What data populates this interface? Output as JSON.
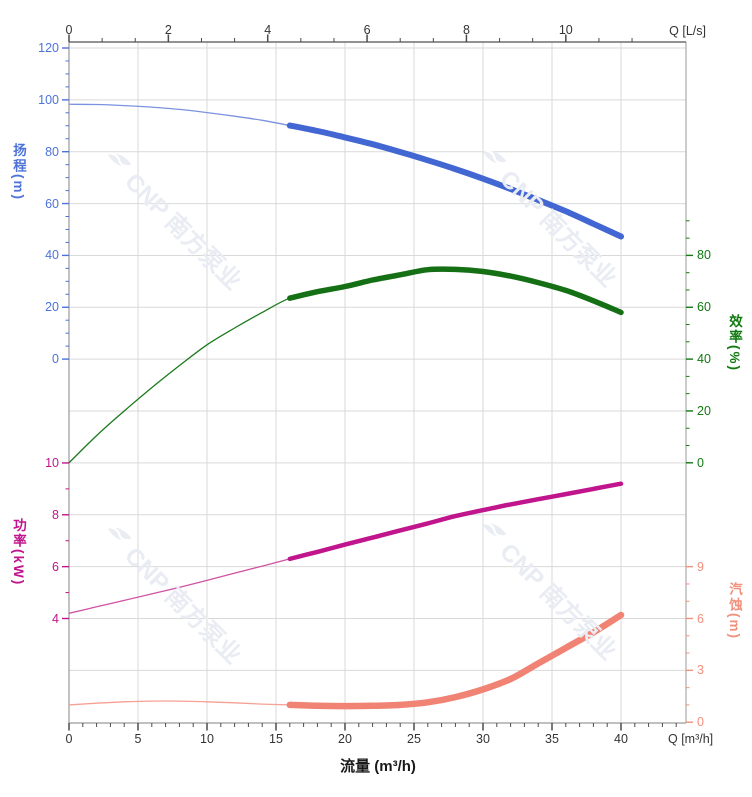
{
  "watermark": {
    "logo_text": "CNP",
    "brand_text": "南方泵业",
    "color": "#e9ecf3"
  },
  "axes": {
    "top": {
      "unit_label": "Q [L/s]",
      "ticks": [
        0,
        2,
        4,
        6,
        8,
        10
      ],
      "label_color": "#333333"
    },
    "bottom": {
      "unit_label": "Q [m³/h]",
      "title": "流量 (m³/h)",
      "ticks": [
        0,
        5,
        10,
        15,
        20,
        25,
        30,
        35,
        40
      ],
      "label_color": "#333333"
    },
    "head": {
      "title": "扬程(m)",
      "ticks": [
        120,
        100,
        80,
        60,
        40,
        20,
        0
      ],
      "color": "#4d72d8"
    },
    "power": {
      "title": "功率(kW)",
      "ticks": [
        10,
        8,
        6,
        4
      ],
      "color": "#c0158c"
    },
    "efficiency": {
      "title": "效率(%)",
      "ticks": [
        80,
        60,
        40,
        20,
        0
      ],
      "color": "#117a11"
    },
    "npsh": {
      "title": "汽蚀(m)",
      "ticks": [
        9,
        6,
        3,
        0
      ],
      "color": "#f2907e"
    }
  },
  "chart_data": {
    "type": "line",
    "title": "",
    "xlabel": "流量 (m³/h)",
    "x_units": [
      "m³/h",
      "L/s"
    ],
    "x": [
      0,
      2,
      4,
      6,
      8,
      10,
      12,
      14,
      16,
      18,
      20,
      22,
      24,
      26,
      28,
      30,
      32,
      34,
      36,
      38,
      40
    ],
    "x_range_m3h": [
      0,
      40
    ],
    "x_range_ls": [
      0,
      10
    ],
    "duty_range_start": 16,
    "grid": true,
    "series": [
      {
        "name": "扬程",
        "unit": "m",
        "axis": "head",
        "axis_range": [
          0,
          120
        ],
        "color_thick": "#4266d2",
        "color_thin": "#7b92e0",
        "values": [
          98.3,
          98.2,
          97.8,
          97.2,
          96.3,
          95.1,
          93.7,
          92.1,
          90.1,
          88.0,
          85.5,
          82.9,
          79.9,
          76.7,
          73.3,
          69.6,
          65.6,
          61.4,
          57.0,
          52.2,
          47.3
        ]
      },
      {
        "name": "效率",
        "unit": "%",
        "axis": "efficiency",
        "axis_range": [
          0,
          80
        ],
        "color_thick": "#156f15",
        "color_thin": "#1b7a1b",
        "values": [
          0,
          10.5,
          20,
          29,
          37.5,
          45.5,
          52,
          58,
          63.5,
          66,
          68,
          70.5,
          72.5,
          74.5,
          74.6,
          73.8,
          72,
          69.5,
          66.5,
          62.5,
          58
        ]
      },
      {
        "name": "功率",
        "unit": "kW",
        "axis": "power",
        "axis_range": [
          4,
          10
        ],
        "color_thick": "#c0158c",
        "color_thin": "#d052a5",
        "values": [
          4.2,
          4.45,
          4.7,
          4.95,
          5.2,
          5.47,
          5.75,
          6.02,
          6.3,
          6.57,
          6.85,
          7.12,
          7.4,
          7.67,
          7.95,
          8.18,
          8.4,
          8.6,
          8.8,
          9.0,
          9.2
        ]
      },
      {
        "name": "汽蚀",
        "unit": "m",
        "axis": "npsh",
        "axis_range": [
          0,
          9
        ],
        "color_thick": "#f08373",
        "color_thin": "#f5a193",
        "values": [
          1.0,
          1.1,
          1.18,
          1.22,
          1.22,
          1.18,
          1.12,
          1.05,
          1.0,
          0.95,
          0.93,
          0.95,
          1.0,
          1.15,
          1.45,
          1.9,
          2.5,
          3.4,
          4.3,
          5.2,
          6.2
        ]
      }
    ]
  }
}
